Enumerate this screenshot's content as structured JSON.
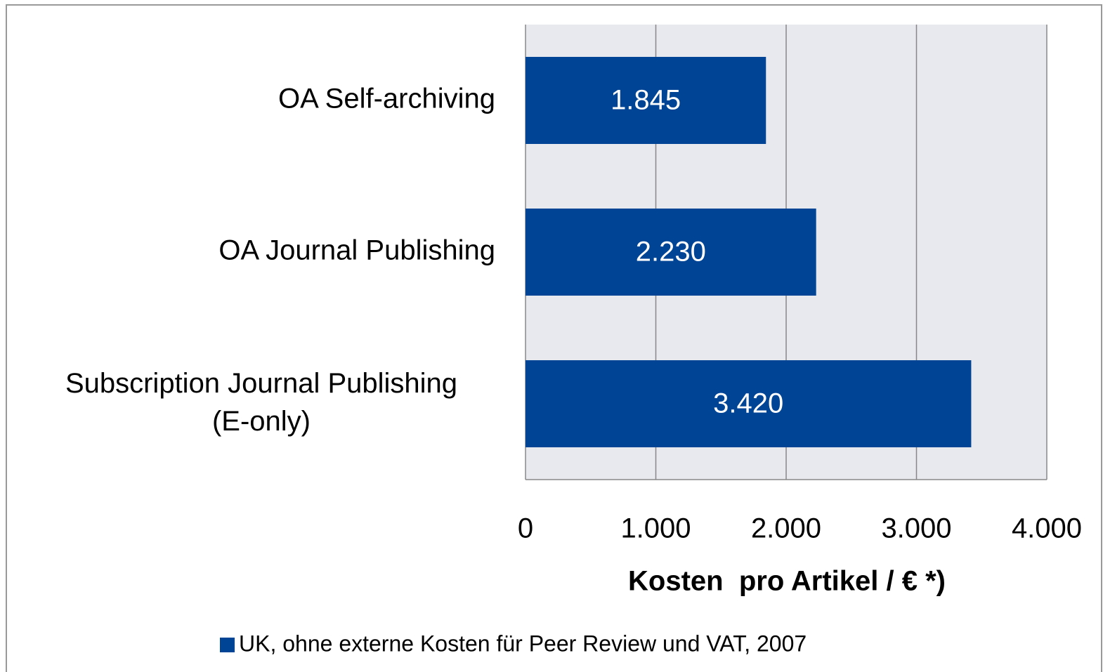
{
  "chart_data": {
    "type": "barh",
    "categories": [
      "OA Self-archiving",
      "OA Journal Publishing",
      "Subscription Journal Publishing\n(E-only)"
    ],
    "series": [
      {
        "name": "UK, ohne externe Kosten für Peer Review und VAT, 2007",
        "color": "#004595",
        "values": [
          1845,
          2230,
          3420
        ],
        "value_labels": [
          "1.845",
          "2.230",
          "3.420"
        ]
      }
    ],
    "xlabel": "Kosten  pro Artikel / € *)",
    "xlim": [
      0,
      4000
    ],
    "xticks": [
      0,
      {
        "value": 1000,
        "label": "1.000"
      },
      {
        "value": 2000,
        "label": "2.000"
      },
      {
        "value": 3000,
        "label": "3.000"
      },
      {
        "value": 4000,
        "label": "4.000"
      }
    ],
    "grid": true,
    "legend": "bottom"
  }
}
